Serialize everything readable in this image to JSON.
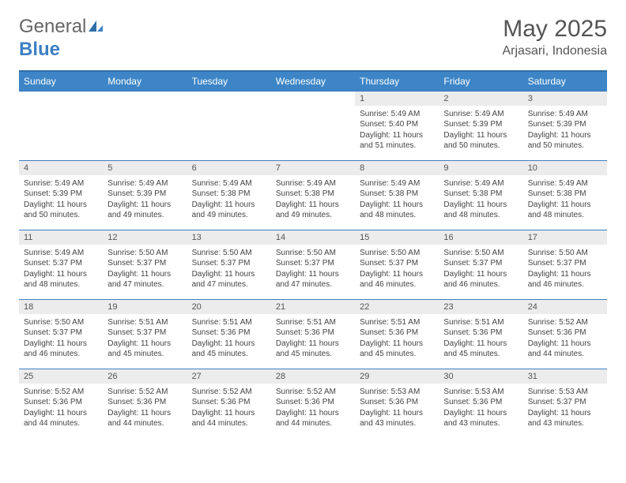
{
  "brand": {
    "general": "General",
    "blue": "Blue"
  },
  "title": "May 2025",
  "location": "Arjasari, Indonesia",
  "colors": {
    "header_bg": "#3d85c6",
    "header_text": "#ffffff",
    "border": "#3d7fc4",
    "daynum_bg": "#ececec",
    "text": "#444444",
    "brand_gray": "#666666",
    "brand_blue": "#3d7fc4",
    "background": "#ffffff"
  },
  "day_headers": [
    "Sunday",
    "Monday",
    "Tuesday",
    "Wednesday",
    "Thursday",
    "Friday",
    "Saturday"
  ],
  "weeks": [
    [
      {
        "empty": true
      },
      {
        "empty": true
      },
      {
        "empty": true
      },
      {
        "empty": true
      },
      {
        "n": "1",
        "sr": "Sunrise: 5:49 AM",
        "ss": "Sunset: 5:40 PM",
        "d1": "Daylight: 11 hours",
        "d2": "and 51 minutes."
      },
      {
        "n": "2",
        "sr": "Sunrise: 5:49 AM",
        "ss": "Sunset: 5:39 PM",
        "d1": "Daylight: 11 hours",
        "d2": "and 50 minutes."
      },
      {
        "n": "3",
        "sr": "Sunrise: 5:49 AM",
        "ss": "Sunset: 5:39 PM",
        "d1": "Daylight: 11 hours",
        "d2": "and 50 minutes."
      }
    ],
    [
      {
        "n": "4",
        "sr": "Sunrise: 5:49 AM",
        "ss": "Sunset: 5:39 PM",
        "d1": "Daylight: 11 hours",
        "d2": "and 50 minutes."
      },
      {
        "n": "5",
        "sr": "Sunrise: 5:49 AM",
        "ss": "Sunset: 5:39 PM",
        "d1": "Daylight: 11 hours",
        "d2": "and 49 minutes."
      },
      {
        "n": "6",
        "sr": "Sunrise: 5:49 AM",
        "ss": "Sunset: 5:38 PM",
        "d1": "Daylight: 11 hours",
        "d2": "and 49 minutes."
      },
      {
        "n": "7",
        "sr": "Sunrise: 5:49 AM",
        "ss": "Sunset: 5:38 PM",
        "d1": "Daylight: 11 hours",
        "d2": "and 49 minutes."
      },
      {
        "n": "8",
        "sr": "Sunrise: 5:49 AM",
        "ss": "Sunset: 5:38 PM",
        "d1": "Daylight: 11 hours",
        "d2": "and 48 minutes."
      },
      {
        "n": "9",
        "sr": "Sunrise: 5:49 AM",
        "ss": "Sunset: 5:38 PM",
        "d1": "Daylight: 11 hours",
        "d2": "and 48 minutes."
      },
      {
        "n": "10",
        "sr": "Sunrise: 5:49 AM",
        "ss": "Sunset: 5:38 PM",
        "d1": "Daylight: 11 hours",
        "d2": "and 48 minutes."
      }
    ],
    [
      {
        "n": "11",
        "sr": "Sunrise: 5:49 AM",
        "ss": "Sunset: 5:37 PM",
        "d1": "Daylight: 11 hours",
        "d2": "and 48 minutes."
      },
      {
        "n": "12",
        "sr": "Sunrise: 5:50 AM",
        "ss": "Sunset: 5:37 PM",
        "d1": "Daylight: 11 hours",
        "d2": "and 47 minutes."
      },
      {
        "n": "13",
        "sr": "Sunrise: 5:50 AM",
        "ss": "Sunset: 5:37 PM",
        "d1": "Daylight: 11 hours",
        "d2": "and 47 minutes."
      },
      {
        "n": "14",
        "sr": "Sunrise: 5:50 AM",
        "ss": "Sunset: 5:37 PM",
        "d1": "Daylight: 11 hours",
        "d2": "and 47 minutes."
      },
      {
        "n": "15",
        "sr": "Sunrise: 5:50 AM",
        "ss": "Sunset: 5:37 PM",
        "d1": "Daylight: 11 hours",
        "d2": "and 46 minutes."
      },
      {
        "n": "16",
        "sr": "Sunrise: 5:50 AM",
        "ss": "Sunset: 5:37 PM",
        "d1": "Daylight: 11 hours",
        "d2": "and 46 minutes."
      },
      {
        "n": "17",
        "sr": "Sunrise: 5:50 AM",
        "ss": "Sunset: 5:37 PM",
        "d1": "Daylight: 11 hours",
        "d2": "and 46 minutes."
      }
    ],
    [
      {
        "n": "18",
        "sr": "Sunrise: 5:50 AM",
        "ss": "Sunset: 5:37 PM",
        "d1": "Daylight: 11 hours",
        "d2": "and 46 minutes."
      },
      {
        "n": "19",
        "sr": "Sunrise: 5:51 AM",
        "ss": "Sunset: 5:37 PM",
        "d1": "Daylight: 11 hours",
        "d2": "and 45 minutes."
      },
      {
        "n": "20",
        "sr": "Sunrise: 5:51 AM",
        "ss": "Sunset: 5:36 PM",
        "d1": "Daylight: 11 hours",
        "d2": "and 45 minutes."
      },
      {
        "n": "21",
        "sr": "Sunrise: 5:51 AM",
        "ss": "Sunset: 5:36 PM",
        "d1": "Daylight: 11 hours",
        "d2": "and 45 minutes."
      },
      {
        "n": "22",
        "sr": "Sunrise: 5:51 AM",
        "ss": "Sunset: 5:36 PM",
        "d1": "Daylight: 11 hours",
        "d2": "and 45 minutes."
      },
      {
        "n": "23",
        "sr": "Sunrise: 5:51 AM",
        "ss": "Sunset: 5:36 PM",
        "d1": "Daylight: 11 hours",
        "d2": "and 45 minutes."
      },
      {
        "n": "24",
        "sr": "Sunrise: 5:52 AM",
        "ss": "Sunset: 5:36 PM",
        "d1": "Daylight: 11 hours",
        "d2": "and 44 minutes."
      }
    ],
    [
      {
        "n": "25",
        "sr": "Sunrise: 5:52 AM",
        "ss": "Sunset: 5:36 PM",
        "d1": "Daylight: 11 hours",
        "d2": "and 44 minutes."
      },
      {
        "n": "26",
        "sr": "Sunrise: 5:52 AM",
        "ss": "Sunset: 5:36 PM",
        "d1": "Daylight: 11 hours",
        "d2": "and 44 minutes."
      },
      {
        "n": "27",
        "sr": "Sunrise: 5:52 AM",
        "ss": "Sunset: 5:36 PM",
        "d1": "Daylight: 11 hours",
        "d2": "and 44 minutes."
      },
      {
        "n": "28",
        "sr": "Sunrise: 5:52 AM",
        "ss": "Sunset: 5:36 PM",
        "d1": "Daylight: 11 hours",
        "d2": "and 44 minutes."
      },
      {
        "n": "29",
        "sr": "Sunrise: 5:53 AM",
        "ss": "Sunset: 5:36 PM",
        "d1": "Daylight: 11 hours",
        "d2": "and 43 minutes."
      },
      {
        "n": "30",
        "sr": "Sunrise: 5:53 AM",
        "ss": "Sunset: 5:36 PM",
        "d1": "Daylight: 11 hours",
        "d2": "and 43 minutes."
      },
      {
        "n": "31",
        "sr": "Sunrise: 5:53 AM",
        "ss": "Sunset: 5:37 PM",
        "d1": "Daylight: 11 hours",
        "d2": "and 43 minutes."
      }
    ]
  ]
}
